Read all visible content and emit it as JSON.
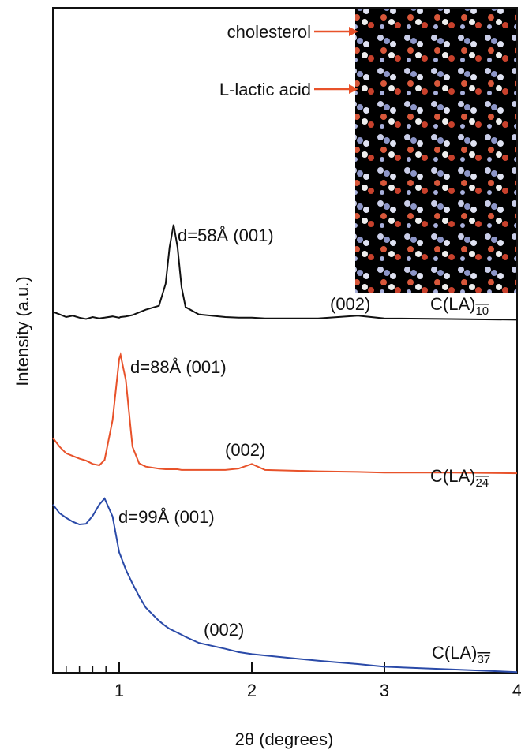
{
  "chart_data": {
    "type": "line",
    "x_label": "2θ (degrees)",
    "y_label": "Intensity (a.u.)",
    "x": [
      0.5,
      0.55,
      0.6,
      0.65,
      0.7,
      0.75,
      0.8,
      0.85,
      0.89,
      0.95,
      1.0,
      1.01,
      1.05,
      1.1,
      1.15,
      1.2,
      1.3,
      1.35,
      1.38,
      1.41,
      1.44,
      1.47,
      1.5,
      1.6,
      1.8,
      1.9,
      2.0,
      2.1,
      2.5,
      2.8,
      3.0,
      3.5,
      4.0
    ],
    "series": [
      {
        "name": "C(LA)10",
        "color": "#111111",
        "values": [
          54.3,
          53.9,
          53.5,
          53.7,
          53.4,
          53.2,
          53.5,
          53.3,
          53.4,
          53.6,
          53.4,
          53.5,
          53.6,
          53.8,
          54.2,
          54.6,
          55.2,
          58.5,
          64,
          67.4,
          64,
          58,
          55,
          53.9,
          53.5,
          53.4,
          53.4,
          53.3,
          53.3,
          53.7,
          53.3,
          53.2,
          53.1
        ]
      },
      {
        "name": "C(LA)24",
        "color": "#e8522a",
        "values": [
          35.3,
          34.0,
          33.0,
          32.6,
          32.2,
          31.9,
          31.4,
          31.2,
          32,
          38,
          47.2,
          47.8,
          44,
          34,
          31.5,
          31.0,
          30.7,
          30.6,
          30.6,
          30.6,
          30.6,
          30.5,
          30.5,
          30.5,
          30.5,
          30.7,
          31.4,
          30.5,
          30.3,
          30.2,
          30.1,
          30.1,
          30.0
        ]
      },
      {
        "name": "C(LA)37",
        "color": "#2a4aa8",
        "values": [
          25.3,
          24.0,
          23.3,
          22.7,
          22.3,
          22.4,
          23.6,
          25.3,
          26.2,
          23.5,
          18.1,
          17.6,
          15.5,
          13.4,
          11.5,
          9.8,
          7.8,
          7.0,
          6.6,
          6.3,
          6.0,
          5.7,
          5.4,
          4.5,
          3.6,
          3.1,
          2.8,
          2.6,
          1.8,
          1.3,
          0.9,
          0.5,
          0.1
        ]
      }
    ],
    "xlim": [
      0.5,
      4
    ],
    "xticks": [
      1,
      2,
      3,
      4
    ],
    "xminorticks": [
      0.6,
      0.7,
      0.8,
      0.9
    ],
    "ylim": [
      0,
      100
    ],
    "annotations": [
      "d=58Å (001)",
      "(002)",
      "d=88Å (001)",
      "(002)",
      "d=99Å (001)",
      "(002)"
    ],
    "inset": {
      "labels": [
        "cholesterol",
        "L-lactic acid"
      ]
    }
  }
}
